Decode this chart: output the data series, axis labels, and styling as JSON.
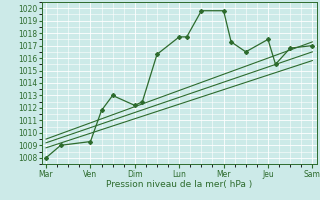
{
  "bg_color": "#cceae8",
  "grid_color": "#ffffff",
  "line_color": "#2d6b2d",
  "days": [
    "Mar",
    "Ven",
    "Dim",
    "Lun",
    "Mer",
    "Jeu",
    "Sam"
  ],
  "day_positions": [
    0,
    1,
    2,
    3,
    4,
    5,
    6
  ],
  "ylim": [
    1007.5,
    1020.5
  ],
  "yticks": [
    1008,
    1009,
    1010,
    1011,
    1012,
    1013,
    1014,
    1015,
    1016,
    1017,
    1018,
    1019,
    1020
  ],
  "xlabel": "Pression niveau de la mer( hPa )",
  "xlabel_fontsize": 6.5,
  "tick_fontsize": 5.5,
  "line_main": {
    "x": [
      0,
      0.33,
      1.0,
      1.25,
      1.5,
      2.0,
      2.17,
      2.5,
      3.0,
      3.17,
      3.5,
      4.0,
      4.17,
      4.5,
      5.0,
      5.17,
      5.5,
      6.0
    ],
    "y": [
      1008.0,
      1009.0,
      1009.3,
      1011.8,
      1013.0,
      1012.2,
      1012.5,
      1016.3,
      1017.7,
      1017.7,
      1019.8,
      1019.8,
      1017.3,
      1016.5,
      1017.5,
      1015.5,
      1016.8,
      1017.0
    ]
  },
  "line_upper": {
    "x": [
      0,
      6.0
    ],
    "y": [
      1009.5,
      1017.3
    ]
  },
  "line_mid": {
    "x": [
      0,
      6.0
    ],
    "y": [
      1009.2,
      1016.5
    ]
  },
  "line_lower": {
    "x": [
      0,
      6.0
    ],
    "y": [
      1008.8,
      1015.8
    ]
  }
}
